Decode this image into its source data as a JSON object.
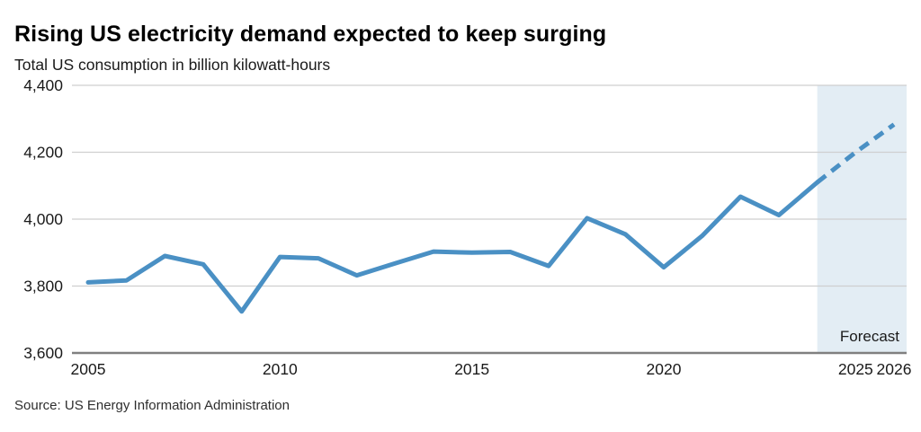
{
  "header": {
    "title": "Rising US electricity demand expected to keep surging",
    "subtitle": "Total US consumption in billion kilowatt-hours"
  },
  "footer": {
    "source": "Source: US Energy Information Administration"
  },
  "chart_data": {
    "type": "line",
    "title": "Rising US electricity demand expected to keep surging",
    "subtitle": "Total US consumption in billion kilowatt-hours",
    "xlabel": "",
    "ylabel": "billion kilowatt-hours",
    "x": [
      2005,
      2006,
      2007,
      2008,
      2009,
      2010,
      2011,
      2012,
      2013,
      2014,
      2015,
      2016,
      2017,
      2018,
      2019,
      2020,
      2021,
      2022,
      2023,
      2024,
      2025,
      2026
    ],
    "series": [
      {
        "name": "Total US electricity consumption",
        "values": [
          3811,
          3817,
          3890,
          3865,
          3724,
          3887,
          3883,
          3832,
          3868,
          3903,
          3900,
          3902,
          3860,
          4003,
          3955,
          3856,
          3950,
          4067,
          4012,
          4110,
          4200,
          4283
        ]
      }
    ],
    "forecast": {
      "label": "Forecast",
      "start_year": 2024,
      "years": [
        2024,
        2025,
        2026
      ],
      "values": [
        4110,
        4200,
        4283
      ],
      "line_style": "dashed",
      "band": true
    },
    "ylim": [
      3600,
      4400
    ],
    "yticks": [
      4400,
      4200,
      4000,
      3800,
      3600
    ],
    "ytick_labels": [
      "4,400",
      "4,200",
      "4,000",
      "3,800",
      "3,600"
    ],
    "xticks": [
      2005,
      2010,
      2015,
      2020,
      2025,
      2026
    ],
    "grid": true,
    "legend": "none",
    "colors": {
      "line": "#4a90c4",
      "forecast_band": "#e3edf4",
      "gridline": "#cfcfcf",
      "axis": "#808080",
      "tick_text": "#1a1a1a"
    }
  }
}
